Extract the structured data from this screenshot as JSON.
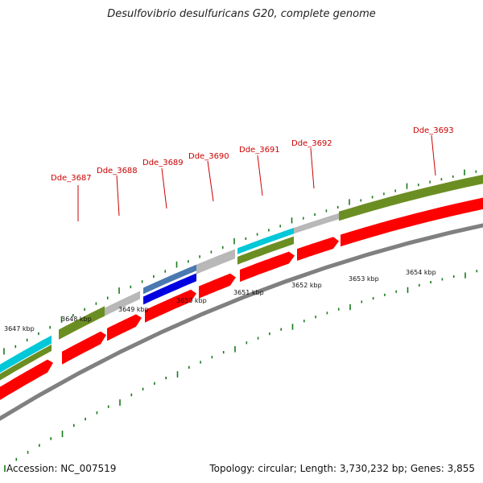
{
  "title": "Desulfovibrio desulfuricans G20, complete genome",
  "accession": "Accession: NC_007519",
  "stats": "Topology: circular; Length: 3,730,232 bp; Genes: 3,855",
  "colors": {
    "gene_label": "#cc0000",
    "cds": "#ff0000",
    "cyan": "#00c8d8",
    "olive": "#6b8e23",
    "gray": "#b8b8b8",
    "blue": "#0000e0",
    "steel": "#4a78b0",
    "tick": "#1a7a1a",
    "backbone": "#808080"
  },
  "genes": [
    "Dde_3687",
    "Dde_3688",
    "Dde_3689",
    "Dde_3690",
    "Dde_3691",
    "Dde_3692",
    "Dde_3693"
  ],
  "kbp_labels": [
    "3647 kbp",
    "3648 kbp",
    "3649 kbp",
    "3650 kbp",
    "3651 kbp",
    "3652 kbp",
    "3653 kbp",
    "3654 kbp"
  ]
}
